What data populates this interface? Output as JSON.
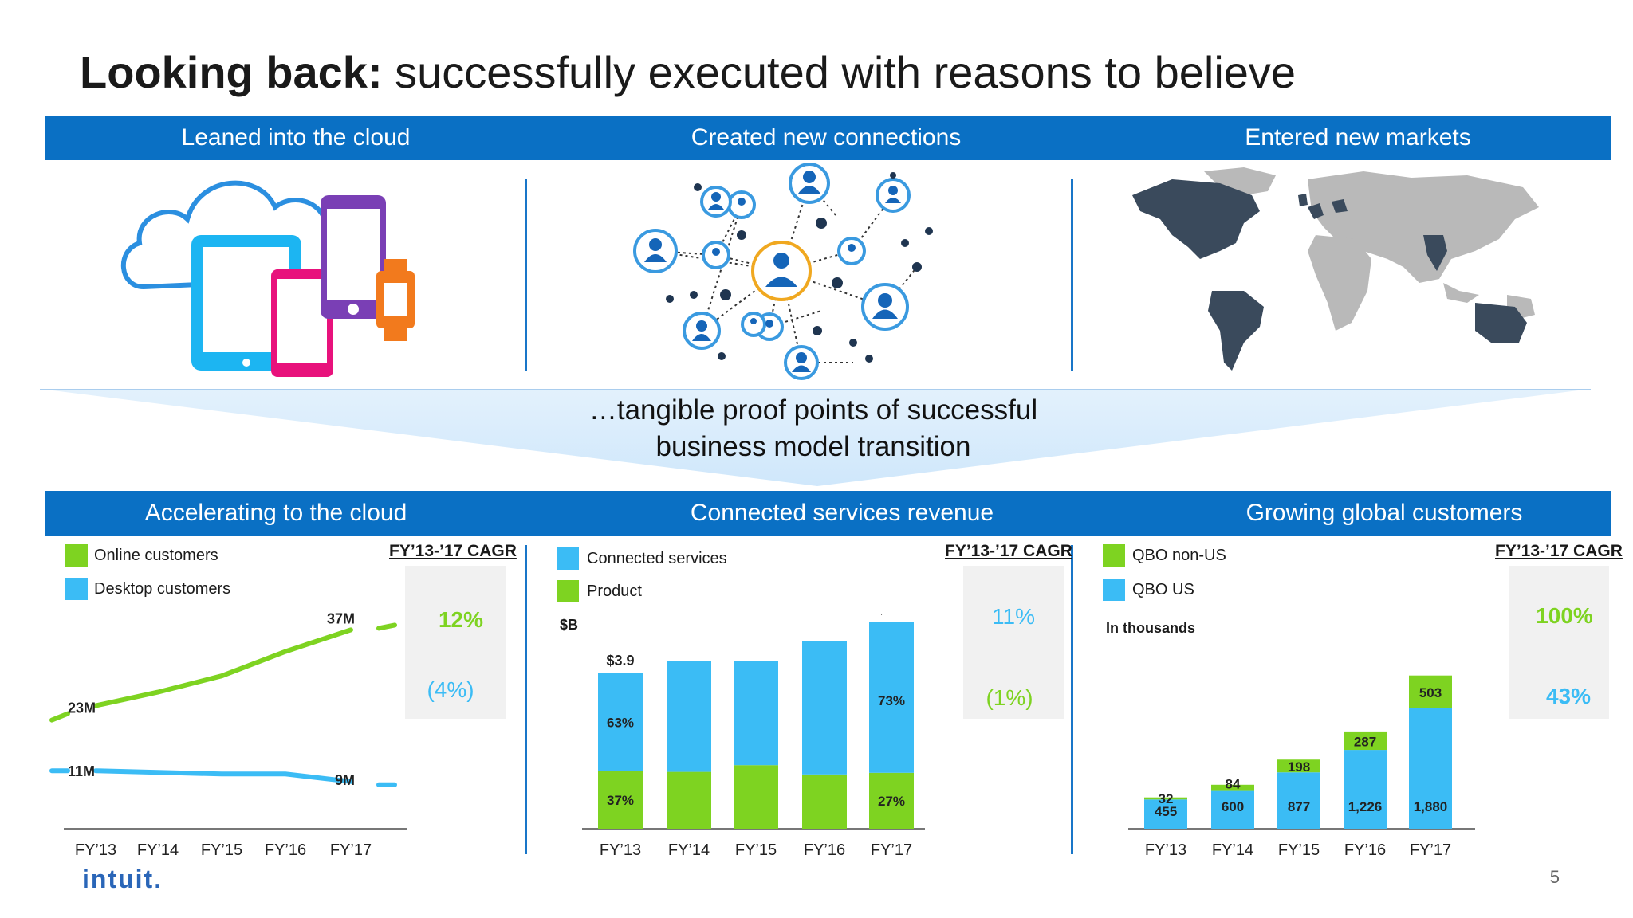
{
  "slide": {
    "title_bold": "Looking back:",
    "title_rest": " successfully executed with reasons to believe",
    "page_number": "5",
    "logo_text": "intuit.",
    "top_bands": [
      "Leaned into the cloud",
      "Created new connections",
      "Entered new markets"
    ],
    "caption_line1": "…tangible proof points of successful",
    "caption_line2": "business model transition",
    "bottom_bands": [
      "Accelerating to the cloud",
      "Connected services revenue",
      "Growing global customers"
    ],
    "cagr_header": "FY’13-’17 CAGR",
    "colors": {
      "band": "#0a70c4",
      "green": "#7ed321",
      "blue": "#3bbcf5",
      "navy": "#3a4a5c",
      "gray_map": "#b9b9b9"
    },
    "illustrations": [
      "cloud-devices-icon",
      "network-people-icon",
      "world-map-icon"
    ]
  },
  "chart_data": [
    {
      "type": "line",
      "legend": [
        "Online customers",
        "Desktop customers"
      ],
      "x": [
        "FY’13",
        "FY’14",
        "FY’15",
        "FY’16",
        "FY’17"
      ],
      "series": [
        {
          "name": "Online customers",
          "values": [
            23,
            25.5,
            28.5,
            33,
            37
          ],
          "labels": [
            "23M",
            "37M"
          ]
        },
        {
          "name": "Desktop customers",
          "values": [
            11,
            10.7,
            10.4,
            10.4,
            9
          ],
          "labels": [
            "11M",
            "9M"
          ]
        }
      ],
      "cagr": [
        "12%",
        "(4%)"
      ]
    },
    {
      "type": "bar",
      "stacked": true,
      "unit": "$B",
      "categories": [
        "FY’13",
        "FY’14",
        "FY’15",
        "FY’16",
        "FY’17"
      ],
      "totals": [
        3.9,
        4.2,
        4.2,
        4.7,
        5.2
      ],
      "total_labels": [
        "$3.9",
        "",
        "",
        "",
        "$5.2"
      ],
      "legend": [
        "Connected services",
        "Product"
      ],
      "series": [
        {
          "name": "Connected services",
          "share": [
            63,
            66,
            62,
            71,
            73
          ],
          "labels": [
            "63%",
            "",
            "",
            "",
            "73%"
          ]
        },
        {
          "name": "Product",
          "share": [
            37,
            34,
            38,
            29,
            27
          ],
          "labels": [
            "37%",
            "",
            "",
            "",
            "27%"
          ]
        }
      ],
      "cagr": [
        "11%",
        "(1%)"
      ]
    },
    {
      "type": "bar",
      "stacked": true,
      "unit": "In thousands",
      "categories": [
        "FY’13",
        "FY’14",
        "FY’15",
        "FY’16",
        "FY’17"
      ],
      "legend": [
        "QBO non-US",
        "QBO US"
      ],
      "series": [
        {
          "name": "QBO US",
          "values": [
            455,
            600,
            877,
            1226,
            1880
          ],
          "labels": [
            "455",
            "600",
            "877",
            "1,226",
            "1,880"
          ]
        },
        {
          "name": "QBO non-US",
          "values": [
            32,
            84,
            198,
            287,
            503
          ],
          "labels": [
            "32",
            "84",
            "198",
            "287",
            "503"
          ]
        }
      ],
      "cagr": [
        "100%",
        "43%"
      ]
    }
  ]
}
